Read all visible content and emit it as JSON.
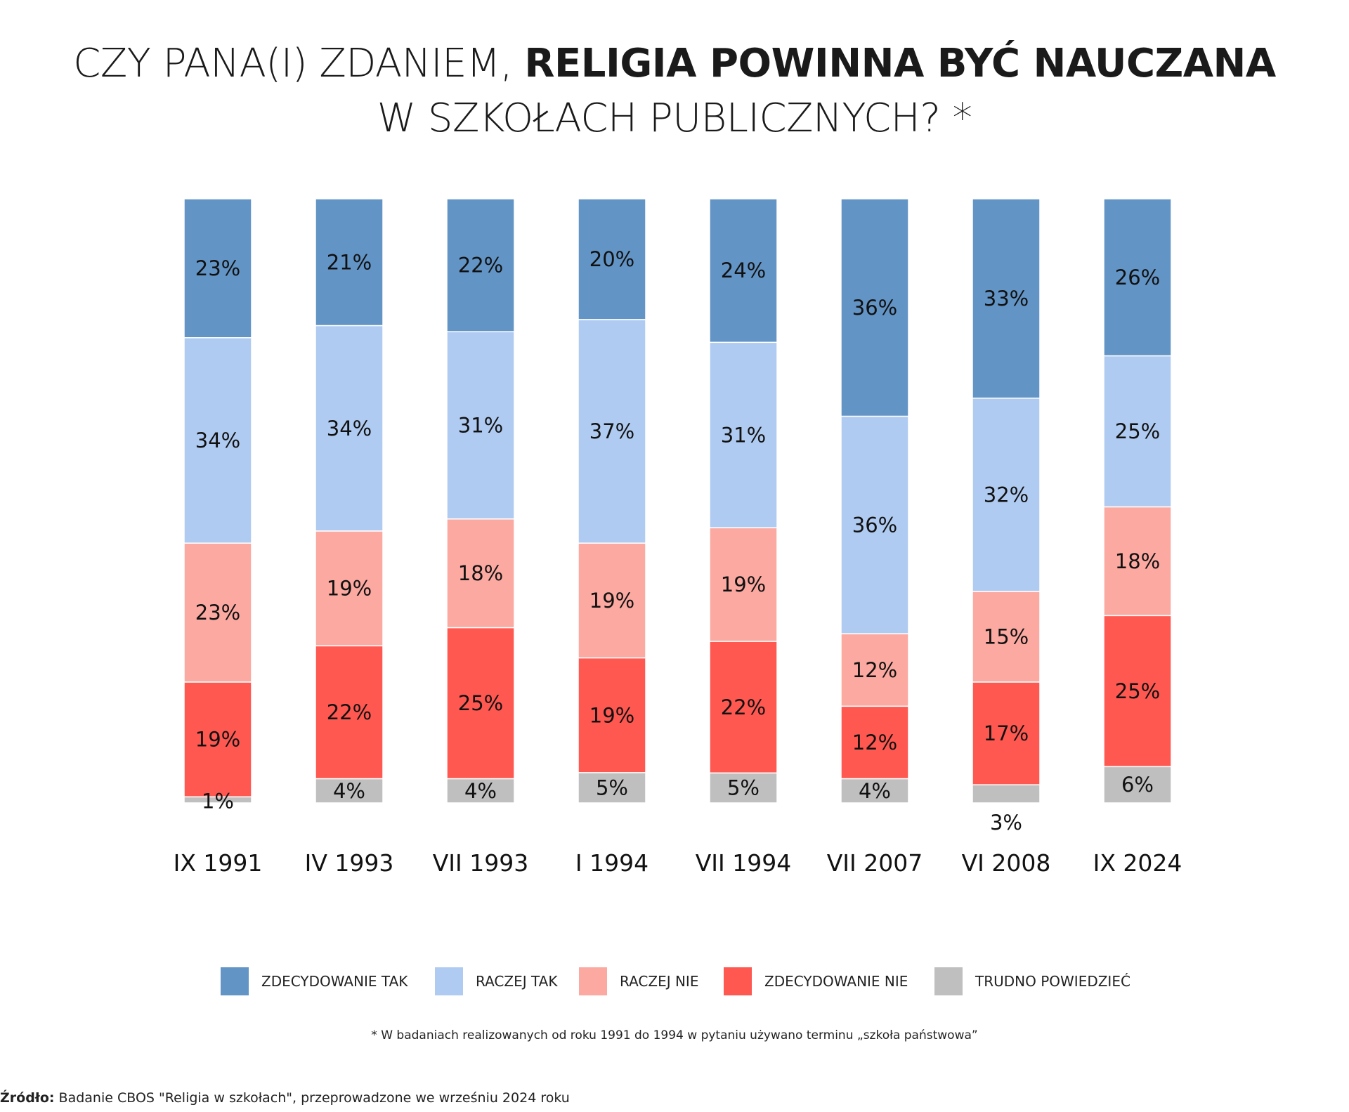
{
  "title": {
    "line1_light": "CZY PANA(I) ZDANIEM, ",
    "line1_bold": "RELIGIA POWINNA BYĆ NAUCZANA",
    "line2": "W SZKOŁACH PUBLICZNYCH? *"
  },
  "chart_data": {
    "type": "bar",
    "stacked": true,
    "normalized_percent": true,
    "categories": [
      "IX 1991",
      "IV 1993",
      "VII 1993",
      "I 1994",
      "VII 1994",
      "VII 2007",
      "VI 2008",
      "IX 2024"
    ],
    "series": [
      {
        "name": "ZDECYDOWANIE TAK",
        "color": "#6294c5",
        "values": [
          23,
          21,
          22,
          20,
          24,
          36,
          33,
          26
        ]
      },
      {
        "name": "RACZEJ TAK",
        "color": "#b0cbf1",
        "values": [
          34,
          34,
          31,
          37,
          31,
          36,
          32,
          25
        ]
      },
      {
        "name": "RACZEJ NIE",
        "color": "#fba9a1",
        "values": [
          23,
          19,
          18,
          19,
          19,
          12,
          15,
          18
        ]
      },
      {
        "name": "ZDECYDOWANIE NIE",
        "color": "#fe5851",
        "values": [
          19,
          22,
          25,
          19,
          22,
          12,
          17,
          25
        ]
      },
      {
        "name": "TRUDNO POWIEDZIEĆ",
        "color": "#bfbfbf",
        "values": [
          1,
          4,
          4,
          5,
          5,
          4,
          3,
          6
        ]
      }
    ],
    "value_suffix": "%",
    "legend_position": "bottom",
    "grid": false
  },
  "footnote": "* W badaniach realizowanych od roku 1991 do 1994 w pytaniu używano terminu „szkoła państwowa”",
  "source": {
    "label": "Źródło:",
    "text": " Badanie CBOS \"Religia w szkołach\", przeprowadzone we wrześniu 2024 roku"
  }
}
